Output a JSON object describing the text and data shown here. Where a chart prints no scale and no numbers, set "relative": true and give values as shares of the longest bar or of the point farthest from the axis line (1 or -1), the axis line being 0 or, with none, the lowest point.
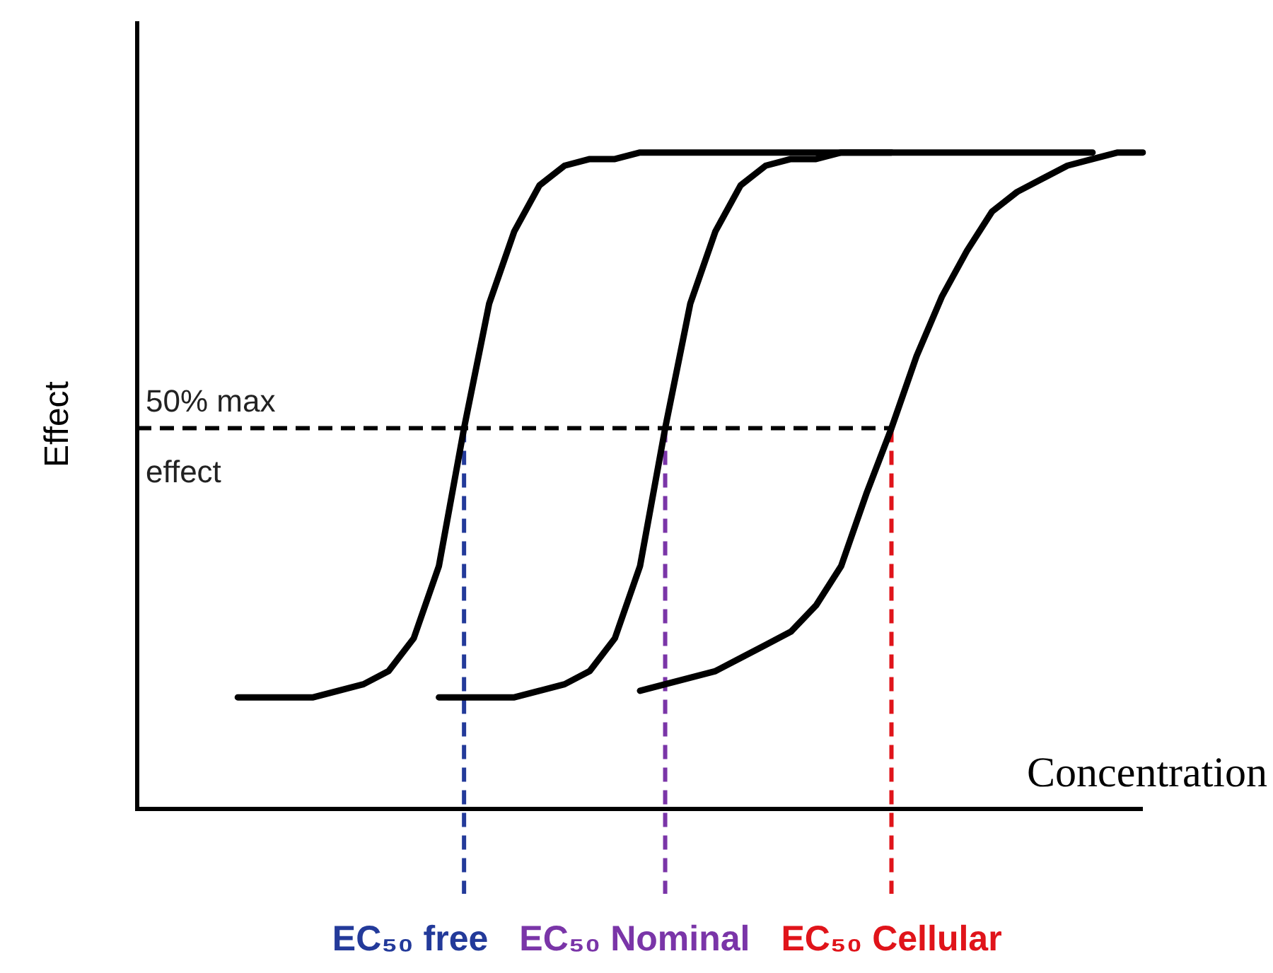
{
  "chart_data": {
    "type": "line",
    "relative": true,
    "xlabel": "Concentration",
    "ylabel": "Effect",
    "tick_labels": false,
    "grid": false,
    "legend": false,
    "categories": [
      null,
      null,
      null,
      null,
      null,
      null,
      null,
      null,
      null,
      null,
      null,
      null,
      null,
      null,
      null,
      null,
      null,
      null,
      null,
      null,
      null,
      null,
      null,
      null,
      null,
      null,
      null,
      null,
      null,
      null,
      null,
      null,
      null,
      null,
      null,
      null,
      null,
      null,
      null,
      null,
      null
    ],
    "series": [
      {
        "color": "#000000",
        "values": [
          null,
          null,
          null,
          null,
          0.17,
          0.17,
          0.17,
          0.17,
          0.18,
          0.19,
          0.21,
          0.26,
          0.37,
          0.58,
          0.77,
          0.88,
          0.95,
          0.98,
          0.99,
          0.99,
          1,
          1,
          1,
          1,
          1,
          1,
          1,
          1,
          1,
          1,
          1,
          null,
          null,
          null,
          null,
          null,
          null,
          null,
          null,
          null,
          null
        ]
      },
      {
        "color": "#000000",
        "values": [
          null,
          null,
          null,
          null,
          null,
          null,
          null,
          null,
          null,
          null,
          null,
          null,
          0.17,
          0.17,
          0.17,
          0.17,
          0.18,
          0.19,
          0.21,
          0.26,
          0.37,
          0.58,
          0.77,
          0.88,
          0.95,
          0.98,
          0.99,
          0.99,
          1,
          1,
          1,
          1,
          1,
          1,
          1,
          1,
          1,
          1,
          1,
          null,
          null
        ]
      },
      {
        "color": "#000000",
        "values": [
          null,
          null,
          null,
          null,
          null,
          null,
          null,
          null,
          null,
          null,
          null,
          null,
          null,
          null,
          null,
          null,
          null,
          null,
          null,
          null,
          0.18,
          0.19,
          0.2,
          0.21,
          0.23,
          0.25,
          0.27,
          0.31,
          0.37,
          0.48,
          0.58,
          0.69,
          0.78,
          0.85,
          0.91,
          0.94,
          0.96,
          0.98,
          0.99,
          1,
          1
        ]
      }
    ],
    "ref_lines": [
      {
        "axis": "y",
        "value": 0.58,
        "label": "50% max effect",
        "color": "#000000",
        "line_style": "dashed"
      },
      {
        "axis": "x",
        "label": "EC₅₀ free",
        "color": "#233a9a",
        "line_style": "dashed"
      },
      {
        "axis": "x",
        "label": "EC₅₀ Nominal",
        "color": "#7a35a8",
        "line_style": "dashed"
      },
      {
        "axis": "x",
        "label": "EC₅₀ Cellular",
        "color": "#e0141a",
        "line_style": "dashed"
      }
    ]
  }
}
